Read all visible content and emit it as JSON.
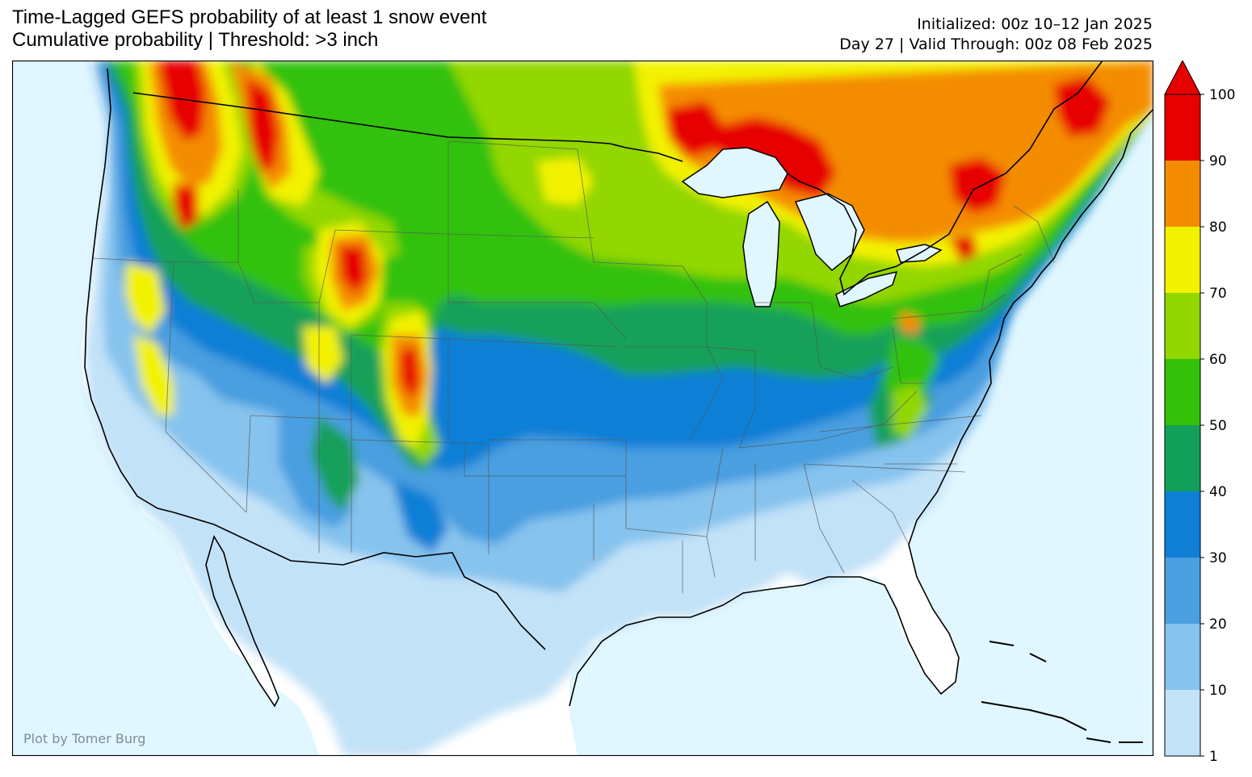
{
  "title": {
    "line1": "Time-Lagged GEFS probability of at least 1 snow event",
    "line2": "Cumulative probability | Threshold: >3 inch"
  },
  "meta": {
    "initialized": "Initialized: 00z 10–12 Jan 2025",
    "valid": "Day 27 | Valid Through: 00z 08 Feb 2025"
  },
  "credit": "Plot by Tomer Burg",
  "colorbar": {
    "ticks": [
      "1",
      "10",
      "20",
      "30",
      "40",
      "50",
      "60",
      "70",
      "80",
      "90",
      "100"
    ],
    "colors": [
      "#c2e2f7",
      "#86c3ee",
      "#4a9fe0",
      "#0f7fd6",
      "#13a05a",
      "#33c10a",
      "#92d700",
      "#f2f200",
      "#f48c00",
      "#e70000"
    ]
  },
  "map": {
    "ocean_color": "#e1f7ff",
    "land_color": "#ffffff"
  }
}
